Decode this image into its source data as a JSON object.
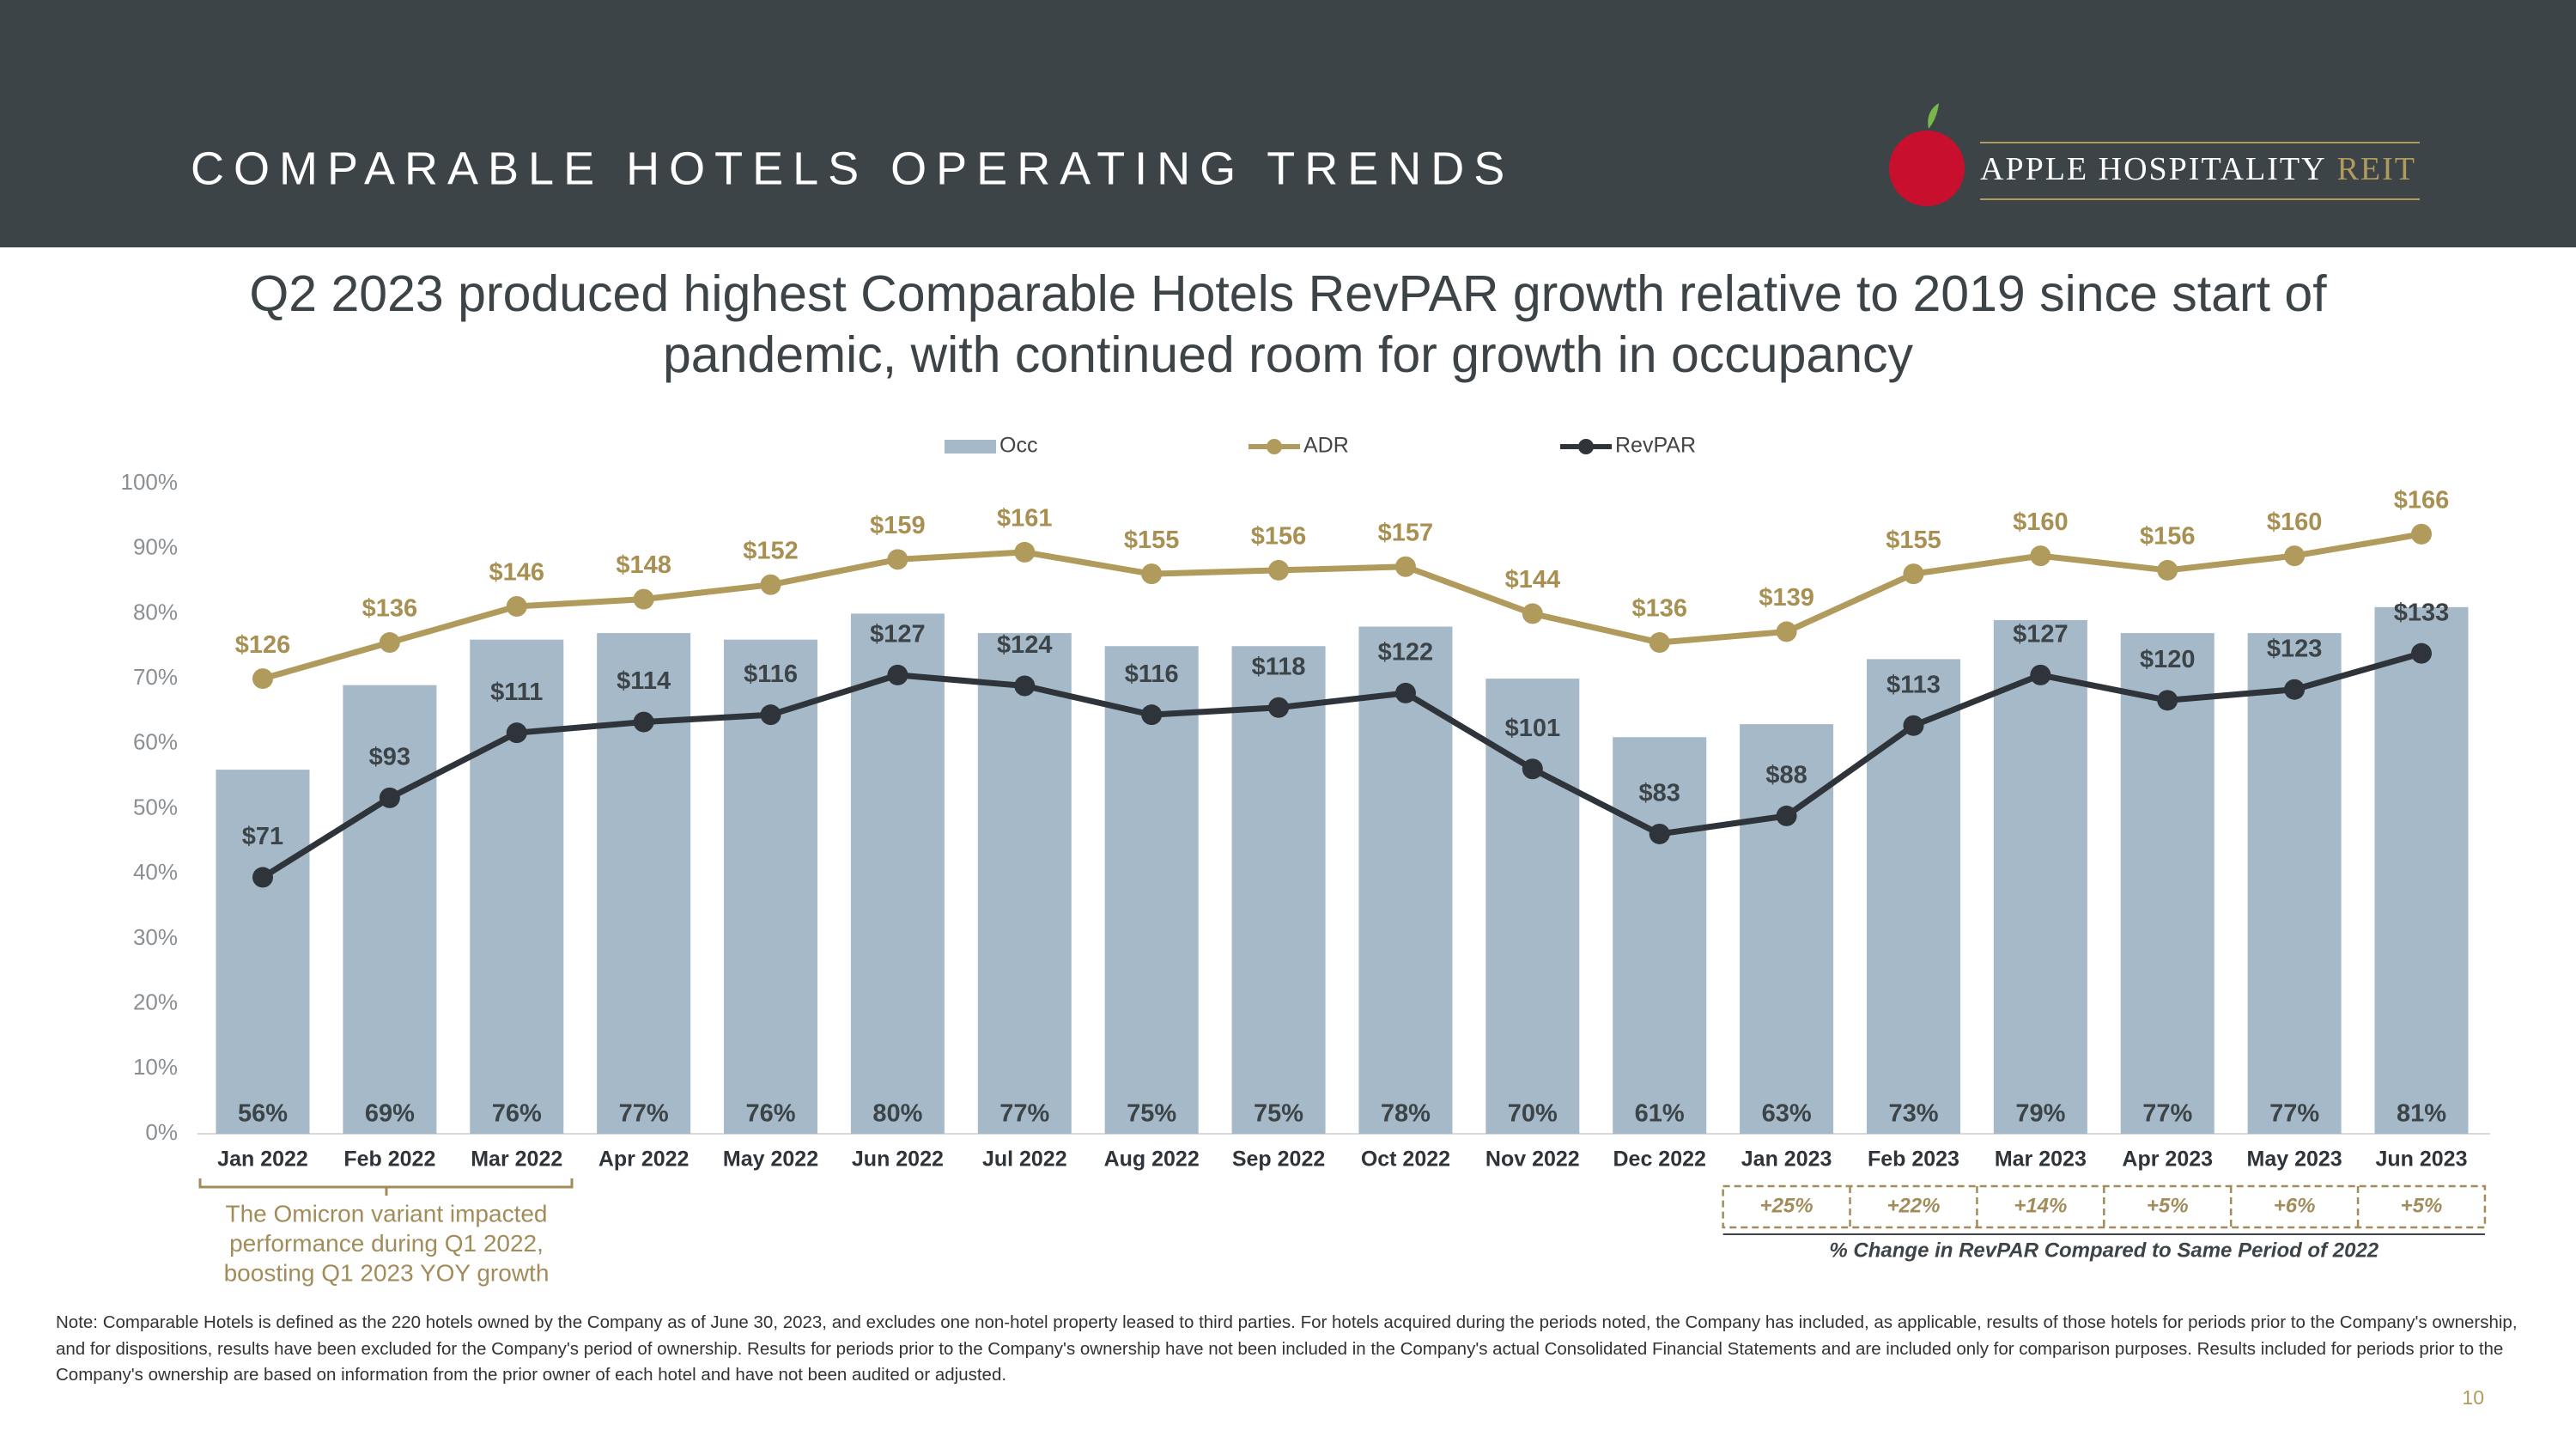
{
  "header": {
    "title": "COMPARABLE HOTELS OPERATING TRENDS"
  },
  "logo": {
    "name": "APPLE HOSPITALITY",
    "suffix": "REIT"
  },
  "chart_data": {
    "type": "bar",
    "title": "Q2 2023 produced highest Comparable Hotels RevPAR growth relative to 2019 since start of pandemic, with continued room for growth in occupancy",
    "categories": [
      "Jan 2022",
      "Feb 2022",
      "Mar 2022",
      "Apr 2022",
      "May 2022",
      "Jun 2022",
      "Jul 2022",
      "Aug 2022",
      "Sep 2022",
      "Oct 2022",
      "Nov 2022",
      "Dec 2022",
      "Jan 2023",
      "Feb 2023",
      "Mar 2023",
      "Apr 2023",
      "May 2023",
      "Jun 2023"
    ],
    "series": [
      {
        "name": "Occ",
        "type": "bar",
        "color": "#a5b9c9",
        "values": [
          56,
          69,
          76,
          77,
          76,
          80,
          77,
          75,
          75,
          78,
          70,
          61,
          63,
          73,
          79,
          77,
          77,
          81
        ],
        "value_labels": [
          "56%",
          "69%",
          "76%",
          "77%",
          "76%",
          "80%",
          "77%",
          "75%",
          "75%",
          "78%",
          "70%",
          "61%",
          "63%",
          "73%",
          "79%",
          "77%",
          "77%",
          "81%"
        ]
      },
      {
        "name": "ADR",
        "type": "line",
        "axis": "y2",
        "color": "#b09a5c",
        "values": [
          126,
          136,
          146,
          148,
          152,
          159,
          161,
          155,
          156,
          157,
          144,
          136,
          139,
          155,
          160,
          156,
          160,
          166
        ],
        "value_labels": [
          "$126",
          "$136",
          "$146",
          "$148",
          "$152",
          "$159",
          "$161",
          "$155",
          "$156",
          "$157",
          "$144",
          "$136",
          "$139",
          "$155",
          "$160",
          "$156",
          "$160",
          "$166"
        ]
      },
      {
        "name": "RevPAR",
        "type": "line",
        "axis": "y2",
        "color": "#2e3439",
        "values": [
          71,
          93,
          111,
          114,
          116,
          127,
          124,
          116,
          118,
          122,
          101,
          83,
          88,
          113,
          127,
          120,
          123,
          133
        ],
        "value_labels": [
          "$71",
          "$93",
          "$111",
          "$114",
          "$116",
          "$127",
          "$124",
          "$116",
          "$118",
          "$122",
          "$101",
          "$83",
          "$88",
          "$113",
          "$127",
          "$120",
          "$123",
          "$133"
        ]
      }
    ],
    "ylim": [
      0,
      100
    ],
    "yticks": [
      {
        "value": 0,
        "label": "0%"
      },
      {
        "value": 10,
        "label": "10%"
      },
      {
        "value": 20,
        "label": "20%"
      },
      {
        "value": 30,
        "label": "30%"
      },
      {
        "value": 40,
        "label": "40%"
      },
      {
        "value": 50,
        "label": "50%"
      },
      {
        "value": 60,
        "label": "60%"
      },
      {
        "value": 70,
        "label": "70%"
      },
      {
        "value": 80,
        "label": "80%"
      },
      {
        "value": 90,
        "label": "90%"
      },
      {
        "value": 100,
        "label": "100%"
      }
    ],
    "y2lim": [
      0,
      180
    ],
    "annotations": {
      "omicron": [
        "The Omicron variant impacted",
        "performance during Q1 2022,",
        "boosting Q1 2023 YOY growth"
      ],
      "yoy_changes": [
        "+25%",
        "+22%",
        "+14%",
        "+5%",
        "+6%",
        "+5%"
      ],
      "yoy_caption": "% Change in RevPAR Compared to Same Period of 2022"
    }
  },
  "note": "Note: Comparable Hotels is defined as the 220 hotels owned by the Company as of June 30, 2023, and excludes one non-hotel property leased to third parties. For hotels acquired during the periods noted, the Company has included, as applicable, results of those hotels for periods prior to the Company's ownership, and for dispositions, results have been excluded for the Company's period of ownership. Results for periods prior to the Company's ownership have not been included in the Company's actual Consolidated Financial Statements and are included only for comparison purposes. Results included for periods prior to the Company's ownership are based on information from the prior owner of each hotel and have not been audited or adjusted.",
  "page_number": "10"
}
